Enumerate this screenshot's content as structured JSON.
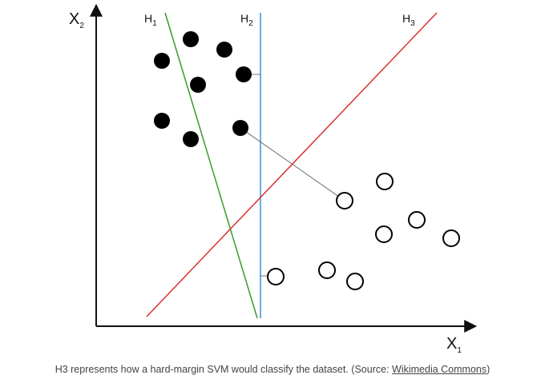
{
  "figure": {
    "axes": {
      "x_label": "X",
      "x_sub": "1",
      "y_label": "X",
      "y_sub": "2"
    },
    "hyperplanes": [
      {
        "id": "h1",
        "label": "H",
        "sub": "1",
        "color": "#3a9a2a"
      },
      {
        "id": "h2",
        "label": "H",
        "sub": "2",
        "color": "#3a8fd6"
      },
      {
        "id": "h3",
        "label": "H",
        "sub": "3",
        "color": "#d93030"
      }
    ],
    "classes": {
      "filled": "black filled circles",
      "hollow": "white hollow circles"
    }
  },
  "caption": {
    "text": "H3 represents how a hard-margin SVM would classify the dataset. (Source: ",
    "link": "Wikimedia Commons",
    "suffix": ")"
  }
}
